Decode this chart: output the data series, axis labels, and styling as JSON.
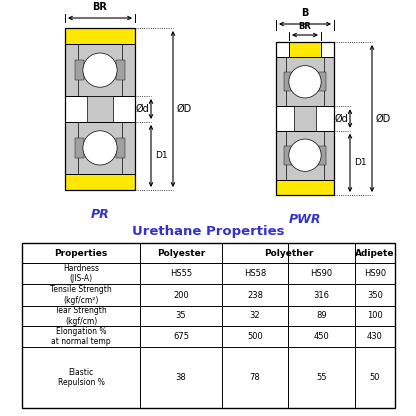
{
  "title": "Urethane Properties",
  "title_color": "#3333cc",
  "rows": [
    [
      "Hardness\n(JIS-A)",
      "HS55",
      "HS58",
      "HS90",
      "HS90"
    ],
    [
      "Tensile Strength\n(kgf/cm²)",
      "200",
      "238",
      "316",
      "350"
    ],
    [
      "Tear Strength\n(kgf/cm)",
      "35",
      "32",
      "89",
      "100"
    ],
    [
      "Elongation %\nat normal temp",
      "675",
      "500",
      "450",
      "430"
    ],
    [
      "Elastic\nRepulsion %",
      "38",
      "78",
      "55",
      "50"
    ]
  ],
  "pr_label": "PR",
  "pwr_label": "PWR",
  "label_color": "#3333cc",
  "yellow": "#FFE800",
  "light_gray": "#C8C8C8",
  "mid_gray": "#A0A0A0",
  "white": "#FFFFFF",
  "black": "#000000",
  "bg_color": "#FFFFFF",
  "line_color": "#404040"
}
